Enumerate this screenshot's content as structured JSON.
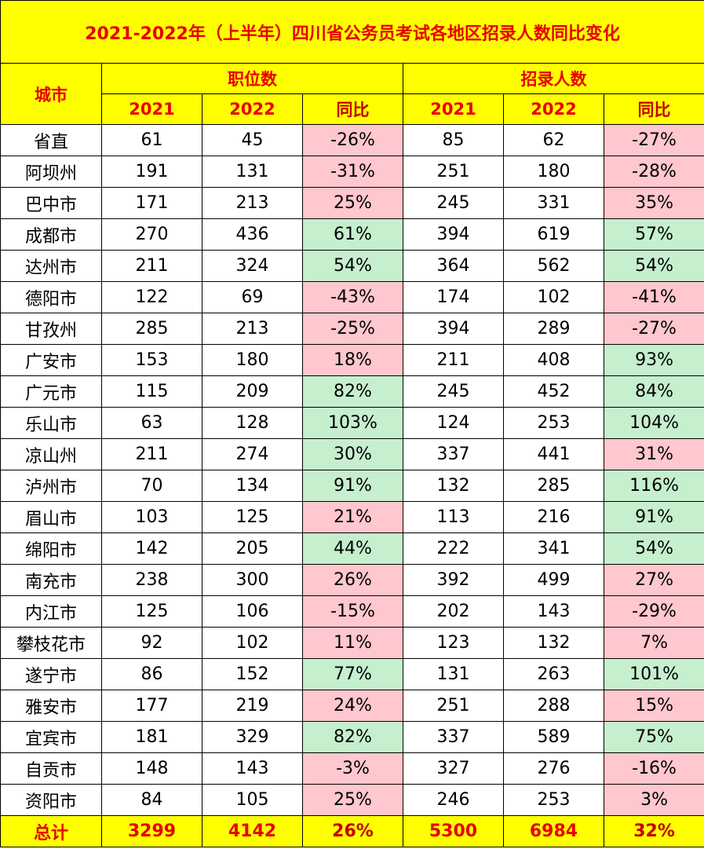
{
  "title": "2021-2022年（上半年）四川省公务员考试各地区招录人数同比变化",
  "headers": {
    "city": "城市",
    "group_positions": "职位数",
    "group_recruits": "招录人数",
    "sub": [
      "2021",
      "2022",
      "同比",
      "2021",
      "2022",
      "同比"
    ]
  },
  "rows": [
    {
      "city": "省直",
      "p21": "61",
      "p22": "45",
      "p_yoy": "-26%",
      "p_trend": "neg",
      "r21": "85",
      "r22": "62",
      "r_yoy": "-27%",
      "r_trend": "neg"
    },
    {
      "city": "阿坝州",
      "p21": "191",
      "p22": "131",
      "p_yoy": "-31%",
      "p_trend": "neg",
      "r21": "251",
      "r22": "180",
      "r_yoy": "-28%",
      "r_trend": "neg"
    },
    {
      "city": "巴中市",
      "p21": "171",
      "p22": "213",
      "p_yoy": "25%",
      "p_trend": "neg",
      "r21": "245",
      "r22": "331",
      "r_yoy": "35%",
      "r_trend": "neg"
    },
    {
      "city": "成都市",
      "p21": "270",
      "p22": "436",
      "p_yoy": "61%",
      "p_trend": "pos",
      "r21": "394",
      "r22": "619",
      "r_yoy": "57%",
      "r_trend": "pos"
    },
    {
      "city": "达州市",
      "p21": "211",
      "p22": "324",
      "p_yoy": "54%",
      "p_trend": "pos",
      "r21": "364",
      "r22": "562",
      "r_yoy": "54%",
      "r_trend": "pos"
    },
    {
      "city": "德阳市",
      "p21": "122",
      "p22": "69",
      "p_yoy": "-43%",
      "p_trend": "neg",
      "r21": "174",
      "r22": "102",
      "r_yoy": "-41%",
      "r_trend": "neg"
    },
    {
      "city": "甘孜州",
      "p21": "285",
      "p22": "213",
      "p_yoy": "-25%",
      "p_trend": "neg",
      "r21": "394",
      "r22": "289",
      "r_yoy": "-27%",
      "r_trend": "neg"
    },
    {
      "city": "广安市",
      "p21": "153",
      "p22": "180",
      "p_yoy": "18%",
      "p_trend": "neg",
      "r21": "211",
      "r22": "408",
      "r_yoy": "93%",
      "r_trend": "pos"
    },
    {
      "city": "广元市",
      "p21": "115",
      "p22": "209",
      "p_yoy": "82%",
      "p_trend": "pos",
      "r21": "245",
      "r22": "452",
      "r_yoy": "84%",
      "r_trend": "pos"
    },
    {
      "city": "乐山市",
      "p21": "63",
      "p22": "128",
      "p_yoy": "103%",
      "p_trend": "pos",
      "r21": "124",
      "r22": "253",
      "r_yoy": "104%",
      "r_trend": "pos"
    },
    {
      "city": "凉山州",
      "p21": "211",
      "p22": "274",
      "p_yoy": "30%",
      "p_trend": "pos",
      "r21": "337",
      "r22": "441",
      "r_yoy": "31%",
      "r_trend": "neg"
    },
    {
      "city": "泸州市",
      "p21": "70",
      "p22": "134",
      "p_yoy": "91%",
      "p_trend": "pos",
      "r21": "132",
      "r22": "285",
      "r_yoy": "116%",
      "r_trend": "pos"
    },
    {
      "city": "眉山市",
      "p21": "103",
      "p22": "125",
      "p_yoy": "21%",
      "p_trend": "neg",
      "r21": "113",
      "r22": "216",
      "r_yoy": "91%",
      "r_trend": "pos"
    },
    {
      "city": "绵阳市",
      "p21": "142",
      "p22": "205",
      "p_yoy": "44%",
      "p_trend": "pos",
      "r21": "222",
      "r22": "341",
      "r_yoy": "54%",
      "r_trend": "pos"
    },
    {
      "city": "南充市",
      "p21": "238",
      "p22": "300",
      "p_yoy": "26%",
      "p_trend": "neg",
      "r21": "392",
      "r22": "499",
      "r_yoy": "27%",
      "r_trend": "neg"
    },
    {
      "city": "内江市",
      "p21": "125",
      "p22": "106",
      "p_yoy": "-15%",
      "p_trend": "neg",
      "r21": "202",
      "r22": "143",
      "r_yoy": "-29%",
      "r_trend": "neg"
    },
    {
      "city": "攀枝花市",
      "p21": "92",
      "p22": "102",
      "p_yoy": "11%",
      "p_trend": "neg",
      "r21": "123",
      "r22": "132",
      "r_yoy": "7%",
      "r_trend": "neg"
    },
    {
      "city": "遂宁市",
      "p21": "86",
      "p22": "152",
      "p_yoy": "77%",
      "p_trend": "pos",
      "r21": "131",
      "r22": "263",
      "r_yoy": "101%",
      "r_trend": "pos"
    },
    {
      "city": "雅安市",
      "p21": "177",
      "p22": "219",
      "p_yoy": "24%",
      "p_trend": "neg",
      "r21": "251",
      "r22": "288",
      "r_yoy": "15%",
      "r_trend": "neg"
    },
    {
      "city": "宜宾市",
      "p21": "181",
      "p22": "329",
      "p_yoy": "82%",
      "p_trend": "pos",
      "r21": "337",
      "r22": "589",
      "r_yoy": "75%",
      "r_trend": "pos"
    },
    {
      "city": "自贡市",
      "p21": "148",
      "p22": "143",
      "p_yoy": "-3%",
      "p_trend": "neg",
      "r21": "327",
      "r22": "276",
      "r_yoy": "-16%",
      "r_trend": "neg"
    },
    {
      "city": "资阳市",
      "p21": "84",
      "p22": "105",
      "p_yoy": "25%",
      "p_trend": "neg",
      "r21": "246",
      "r22": "253",
      "r_yoy": "3%",
      "r_trend": "neg"
    }
  ],
  "total": {
    "label": "总计",
    "p21": "3299",
    "p22": "4142",
    "p_yoy": "26%",
    "r21": "5300",
    "r22": "6984",
    "r_yoy": "32%"
  },
  "colors": {
    "header_bg": "#ffff00",
    "header_text": "#e60000",
    "negative_bg": "#ffc7ce",
    "negative_text": "#9c0006",
    "positive_bg": "#c6efce",
    "positive_text": "#006100"
  }
}
